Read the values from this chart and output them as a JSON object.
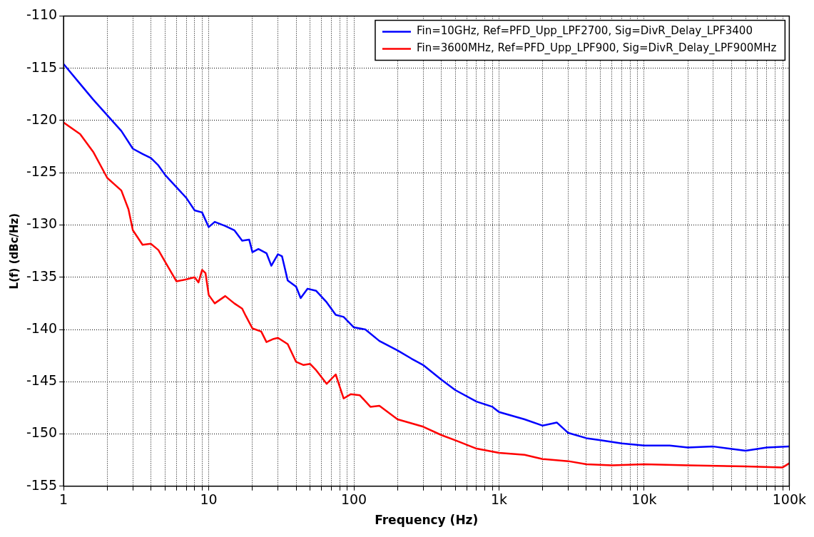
{
  "chart_data": {
    "type": "line",
    "xlabel": "Frequency (Hz)",
    "ylabel": "L(f) (dBc/Hz)",
    "log": "x",
    "grid": true,
    "legend": "top right",
    "line_style": "solid",
    "marker": "none",
    "xlim": [
      1,
      100000
    ],
    "ylim": [
      -155,
      -110
    ],
    "xticks": [
      1,
      null,
      null,
      null,
      null,
      null,
      null,
      null,
      null,
      10,
      null,
      null,
      null,
      null,
      null,
      null,
      null,
      null,
      100,
      null,
      null,
      null,
      null,
      null,
      null,
      null,
      null,
      {
        "value": 1000,
        "label": "1k"
      },
      null,
      null,
      null,
      null,
      null,
      null,
      null,
      null,
      {
        "value": 10000,
        "label": "10k"
      },
      null,
      null,
      null,
      null,
      null,
      null,
      null,
      null,
      {
        "value": 100000,
        "label": "100k"
      }
    ],
    "yticks": [
      -155,
      -150,
      -145,
      -140,
      -135,
      -130,
      -125,
      -120,
      -115,
      -110
    ],
    "series": [
      {
        "name": "Fin=10GHz, Ref=PFD_Upp_LPF2700, Sig=DivR_Delay_LPF3400",
        "color": "#0000ff",
        "x": [
          1,
          1.3,
          1.6,
          2,
          2.5,
          3,
          3.5,
          4,
          4.5,
          5,
          6,
          7,
          8,
          9,
          10,
          11,
          13,
          15,
          17,
          19,
          20,
          22,
          25,
          27,
          30,
          32,
          35,
          40,
          43,
          48,
          55,
          65,
          75,
          85,
          100,
          120,
          150,
          200,
          250,
          300,
          400,
          500,
          700,
          900,
          1000,
          1500,
          2000,
          2500,
          3000,
          4000,
          5000,
          7000,
          10000,
          15000,
          20000,
          30000,
          50000,
          70000,
          100000
        ],
        "values": [
          -114.6,
          -116.5,
          -118,
          -119.5,
          -121,
          -122.7,
          -123.2,
          -123.6,
          -124.3,
          -125.2,
          -126.4,
          -127.4,
          -128.6,
          -128.8,
          -130.2,
          -129.7,
          -130.1,
          -130.5,
          -131.5,
          -131.4,
          -132.6,
          -132.3,
          -132.7,
          -133.9,
          -132.8,
          -133,
          -135.3,
          -135.9,
          -137,
          -136.1,
          -136.3,
          -137.4,
          -138.6,
          -138.8,
          -139.8,
          -140,
          -141.1,
          -142,
          -142.8,
          -143.4,
          -144.8,
          -145.8,
          -146.9,
          -147.4,
          -147.9,
          -148.6,
          -149.2,
          -148.9,
          -149.9,
          -150.4,
          -150.6,
          -150.9,
          -151.1,
          -151.1,
          -151.3,
          -151.2,
          -151.6,
          -151.3,
          -151.2
        ]
      },
      {
        "name": "Fin=3600MHz, Ref=PFD_Upp_LPF900, Sig=DivR_Delay_LPF900MHz",
        "color": "#ff0000",
        "x": [
          1,
          1.3,
          1.6,
          2,
          2.5,
          2.8,
          3,
          3.5,
          4,
          4.5,
          5,
          6,
          7,
          8,
          8.5,
          9,
          9.5,
          10,
          11,
          13,
          15,
          17,
          18,
          20,
          23,
          25,
          28,
          30,
          35,
          40,
          45,
          50,
          55,
          65,
          75,
          80,
          85,
          95,
          110,
          130,
          150,
          200,
          300,
          400,
          500,
          700,
          1000,
          1500,
          2000,
          3000,
          4000,
          6000,
          10000,
          20000,
          50000,
          90000,
          100000
        ],
        "values": [
          -120.2,
          -121.3,
          -123,
          -125.5,
          -126.7,
          -128.5,
          -130.5,
          -131.9,
          -131.8,
          -132.4,
          -133.5,
          -135.4,
          -135.2,
          -135,
          -135.5,
          -134.3,
          -134.6,
          -136.7,
          -137.5,
          -136.8,
          -137.5,
          -138,
          -138.7,
          -139.9,
          -140.2,
          -141.2,
          -140.9,
          -140.8,
          -141.4,
          -143.1,
          -143.4,
          -143.3,
          -143.9,
          -145.2,
          -144.3,
          -145.5,
          -146.6,
          -146.2,
          -146.3,
          -147.4,
          -147.3,
          -148.6,
          -149.3,
          -150.1,
          -150.6,
          -151.4,
          -151.8,
          -152,
          -152.4,
          -152.6,
          -152.9,
          -153,
          -152.9,
          -153,
          -153.1,
          -153.2,
          -152.8
        ]
      }
    ]
  }
}
